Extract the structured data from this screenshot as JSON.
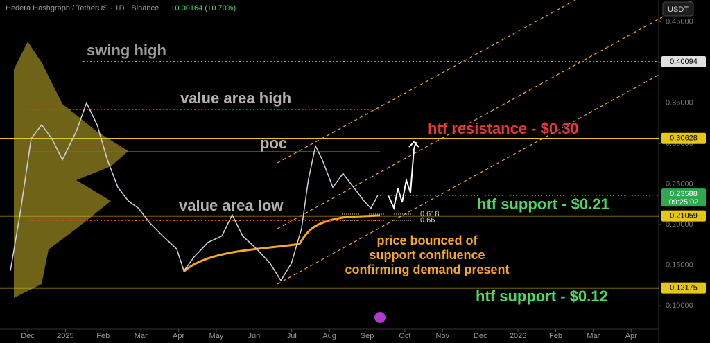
{
  "chart_data": {
    "type": "line",
    "header": {
      "symbol": "Hedera Hashgraph / TetherUS · 1D · Binance",
      "change": "+0.00164 (+0.70%)",
      "currency": "USDT"
    },
    "x": [
      -0.46,
      -0.18,
      0.09,
      0.37,
      0.64,
      0.92,
      1.29,
      1.56,
      1.84,
      2.11,
      2.39,
      2.67,
      2.94,
      3.22,
      3.58,
      3.95,
      4.14,
      4.41,
      4.78,
      5.15,
      5.42,
      5.7,
      6.07,
      6.43,
      6.71,
      6.99,
      7.26,
      7.44,
      7.63,
      7.81,
      8.09,
      8.36,
      8.64,
      8.92,
      9.1,
      9.28
    ],
    "series": [
      {
        "color": "#cfd3dc",
        "values": [
          0.143,
          0.22,
          0.306,
          0.323,
          0.306,
          0.28,
          0.315,
          0.35,
          0.323,
          0.28,
          0.246,
          0.229,
          0.22,
          0.203,
          0.186,
          0.17,
          0.143,
          0.16,
          0.178,
          0.186,
          0.212,
          0.186,
          0.17,
          0.152,
          0.131,
          0.152,
          0.195,
          0.255,
          0.297,
          0.28,
          0.246,
          0.263,
          0.246,
          0.229,
          0.22,
          0.236
        ]
      }
    ],
    "xlim": [
      -0.735,
      16.73
    ],
    "xticks": [
      {
        "value": 0,
        "label": "Dec"
      },
      {
        "value": 1,
        "label": "2025"
      },
      {
        "value": 2,
        "label": "Feb"
      },
      {
        "value": 3,
        "label": "Mar"
      },
      {
        "value": 4,
        "label": "Apr"
      },
      {
        "value": 5,
        "label": "May"
      },
      {
        "value": 6,
        "label": "Jun"
      },
      {
        "value": 7,
        "label": "Jul"
      },
      {
        "value": 8,
        "label": "Aug"
      },
      {
        "value": 9,
        "label": "Sep"
      },
      {
        "value": 10,
        "label": "Oct"
      },
      {
        "value": 11,
        "label": "Nov"
      },
      {
        "value": 12,
        "label": "Dec"
      },
      {
        "value": 13,
        "label": "2026"
      },
      {
        "value": 14,
        "label": "Feb"
      },
      {
        "value": 15,
        "label": "Mar"
      },
      {
        "value": 16,
        "label": "Apr"
      }
    ],
    "ylim": [
      0.071,
      0.477
    ],
    "yticks": [
      {
        "value": 0.1,
        "label": "0.10000"
      },
      {
        "value": 0.15,
        "label": "0.15000"
      },
      {
        "value": 0.2,
        "label": "0.20000"
      },
      {
        "value": 0.25,
        "label": "0.25000"
      },
      {
        "value": 0.3,
        "label": "0.30000"
      },
      {
        "value": 0.35,
        "label": "0.35000"
      },
      {
        "value": 0.4,
        "label": "0.40000"
      },
      {
        "value": 0.45,
        "label": "0.45000"
      }
    ],
    "levels": [
      {
        "value": 0.40094,
        "color": "#bbbbbb",
        "style": "dotted",
        "label": "swing high",
        "label_color": "#9a9a9a",
        "tag": true
      },
      {
        "value": 0.342,
        "color": "#e53935",
        "style": "dotted",
        "label": "value area high",
        "label_color": "#b0b0b0",
        "tag": false
      },
      {
        "value": 0.2897,
        "color": "#e53935",
        "style": "solid",
        "label": "poc",
        "label_color": "#b0b0b0",
        "tag": false
      },
      {
        "value": 0.205,
        "color": "#e53935",
        "style": "dotted",
        "label": "value area low",
        "label_color": "#b0b0b0",
        "tag": false
      },
      {
        "value": 0.30628,
        "color": "#e6c619",
        "style": "solid",
        "label": "htf resistance - $0.30",
        "label_color": "#e53935",
        "tag": true
      },
      {
        "value": 0.21059,
        "color": "#e6c619",
        "style": "solid",
        "label": "htf support - $0.21",
        "label_color": "#4cd964",
        "tag": true
      },
      {
        "value": 0.12175,
        "color": "#e6c619",
        "style": "solid",
        "label": "htf support - $0.12",
        "label_color": "#4cd964",
        "tag": true
      }
    ],
    "last_price": 0.23588,
    "countdown": "09:25:02",
    "fib_ratios": [
      0.618,
      0.66
    ],
    "note": [
      "price bounced of",
      "support confluence",
      "confirming demand present"
    ]
  }
}
